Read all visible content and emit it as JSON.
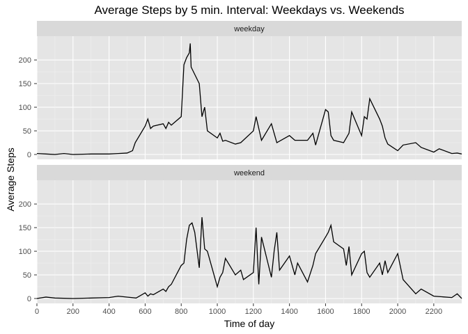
{
  "chart_data": {
    "type": "line",
    "title": "Average Steps by 5 min. Interval: Weekdays vs. Weekends",
    "xlabel": "Time of day",
    "ylabel": "Average Steps",
    "xlim": [
      0,
      2355
    ],
    "ylim": [
      0,
      240
    ],
    "x_ticks": [
      0,
      200,
      400,
      600,
      800,
      1000,
      1200,
      1400,
      1600,
      1800,
      2000,
      2200
    ],
    "y_ticks": [
      0,
      50,
      100,
      150,
      200
    ],
    "grid": true,
    "line_color": "#000000",
    "panel_background": "#e5e5e5",
    "strip_background": "#d9d9d9",
    "panels": [
      {
        "strip_label": "weekday",
        "x": [
          0,
          50,
          100,
          150,
          200,
          300,
          400,
          450,
          500,
          530,
          545,
          600,
          615,
          630,
          645,
          700,
          715,
          730,
          745,
          800,
          815,
          830,
          845,
          850,
          855,
          900,
          915,
          930,
          945,
          1000,
          1015,
          1030,
          1045,
          1100,
          1130,
          1200,
          1215,
          1230,
          1245,
          1300,
          1330,
          1400,
          1430,
          1500,
          1530,
          1545,
          1600,
          1615,
          1630,
          1645,
          1700,
          1730,
          1745,
          1800,
          1815,
          1830,
          1845,
          1900,
          1915,
          1930,
          1945,
          2000,
          2030,
          2100,
          2130,
          2200,
          2230,
          2300,
          2330,
          2355
        ],
        "values": [
          2,
          1,
          0,
          2,
          0,
          1,
          1,
          2,
          3,
          8,
          25,
          60,
          75,
          55,
          60,
          65,
          55,
          68,
          62,
          80,
          190,
          205,
          215,
          235,
          185,
          150,
          80,
          100,
          50,
          35,
          45,
          28,
          30,
          22,
          25,
          50,
          80,
          55,
          30,
          65,
          25,
          40,
          30,
          30,
          45,
          20,
          95,
          90,
          40,
          30,
          25,
          45,
          90,
          40,
          80,
          75,
          118,
          75,
          60,
          35,
          22,
          8,
          20,
          25,
          15,
          5,
          12,
          2,
          3,
          1
        ],
        "series": [
          {
            "values": []
          }
        ]
      },
      {
        "strip_label": "weekend",
        "x": [
          0,
          50,
          100,
          200,
          300,
          400,
          450,
          500,
          550,
          600,
          615,
          630,
          645,
          700,
          715,
          730,
          745,
          800,
          815,
          830,
          845,
          860,
          875,
          900,
          915,
          930,
          945,
          1000,
          1015,
          1030,
          1045,
          1100,
          1130,
          1145,
          1200,
          1215,
          1230,
          1245,
          1300,
          1315,
          1330,
          1345,
          1400,
          1430,
          1445,
          1500,
          1530,
          1545,
          1600,
          1615,
          1630,
          1645,
          1700,
          1715,
          1730,
          1745,
          1800,
          1815,
          1830,
          1845,
          1900,
          1915,
          1930,
          1945,
          2000,
          2030,
          2100,
          2130,
          2200,
          2300,
          2330,
          2355
        ],
        "values": [
          0,
          3,
          1,
          0,
          1,
          2,
          5,
          3,
          1,
          12,
          5,
          10,
          8,
          20,
          15,
          25,
          30,
          70,
          75,
          125,
          155,
          160,
          140,
          65,
          172,
          105,
          100,
          25,
          45,
          55,
          85,
          50,
          60,
          40,
          55,
          150,
          30,
          130,
          45,
          100,
          140,
          60,
          90,
          50,
          75,
          35,
          70,
          95,
          130,
          140,
          155,
          120,
          105,
          70,
          110,
          50,
          95,
          100,
          55,
          45,
          75,
          50,
          80,
          55,
          95,
          40,
          10,
          20,
          5,
          2,
          10,
          0
        ],
        "series": [
          {
            "values": []
          }
        ]
      }
    ]
  }
}
